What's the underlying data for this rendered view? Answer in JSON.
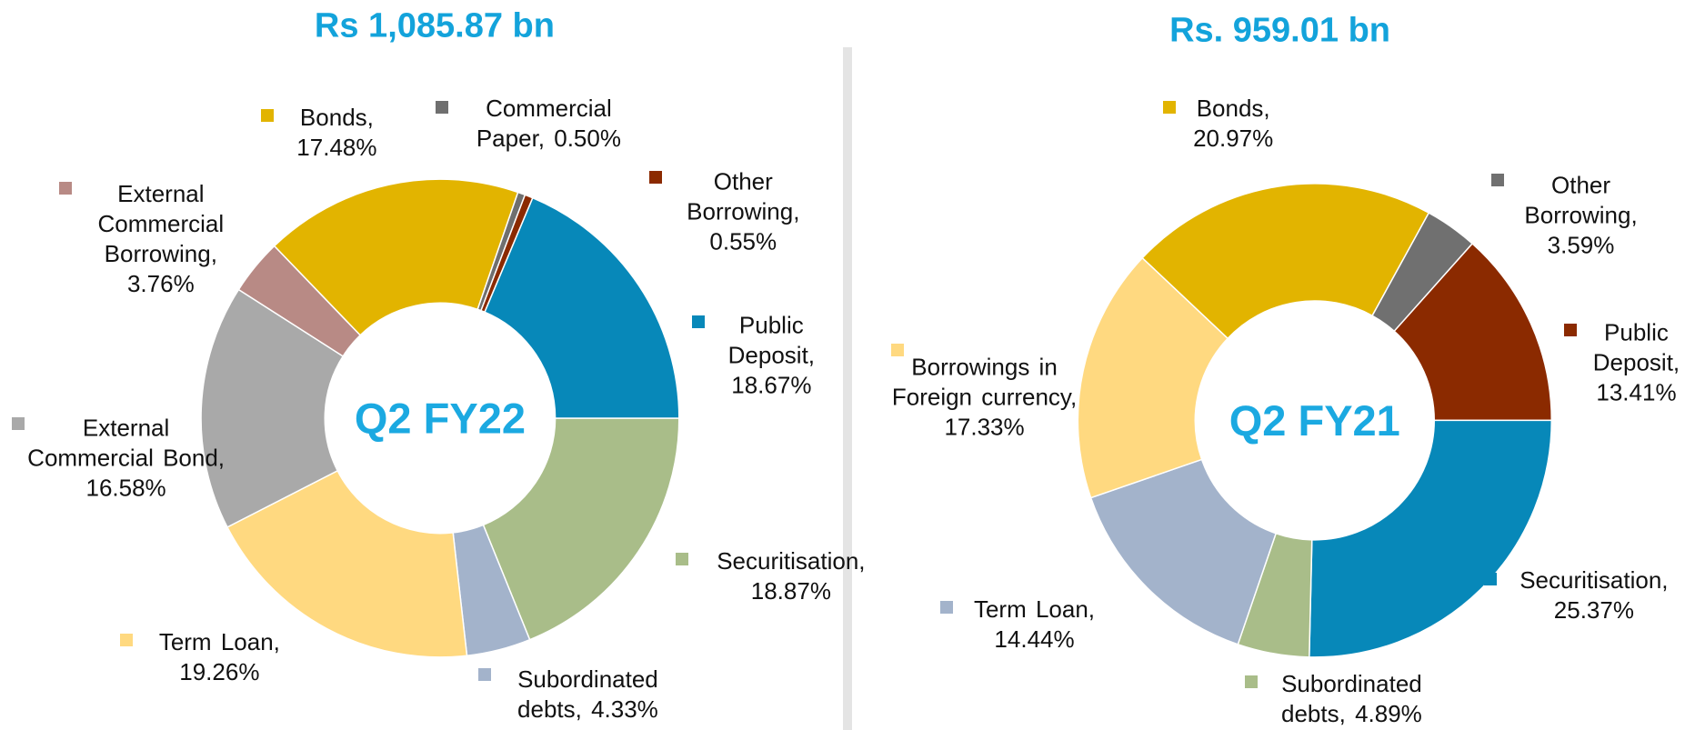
{
  "chart_data": [
    {
      "type": "pie",
      "title": "Rs 1,085.87 bn",
      "center_label": "Q2 FY22",
      "values": [
        17.48,
        0.5,
        0.55,
        18.67,
        18.87,
        4.33,
        19.26,
        16.58,
        3.76
      ],
      "value_labels": [
        "Bonds, 17.48%",
        "Commercial Paper, 0.50%",
        "Other Borrowing, 0.55%",
        "Public Deposit, 18.67%",
        "Securitisation, 18.87%",
        "Subordinated debts, 4.33%",
        "Term Loan, 19.26%",
        "External Commercial Bond, 16.58%",
        "External Commercial Borrowing, 3.76%"
      ],
      "colors": [
        "#E2B400",
        "#6F6F6F",
        "#8B2A00",
        "#0788B9",
        "#A9BD89",
        "#A3B3CB",
        "#FFD980",
        "#A9A9A9",
        "#B88A85"
      ]
    },
    {
      "type": "pie",
      "title": "Rs. 959.01 bn",
      "center_label": "Q2 FY21",
      "values": [
        20.97,
        3.59,
        13.41,
        25.37,
        4.89,
        14.44,
        17.33
      ],
      "value_labels": [
        "Bonds, 20.97%",
        "Other Borrowing, 3.59%",
        "Public Deposit, 13.41%",
        "Securitisation, 25.37%",
        "Subordinated debts, 4.89%",
        "Term Loan, 14.44%",
        "Borrowings in Foreign currency, 17.33%"
      ],
      "colors": [
        "#E2B400",
        "#707070",
        "#8B2A00",
        "#0788B9",
        "#A9BD89",
        "#A3B3CB",
        "#FFD980"
      ]
    }
  ]
}
